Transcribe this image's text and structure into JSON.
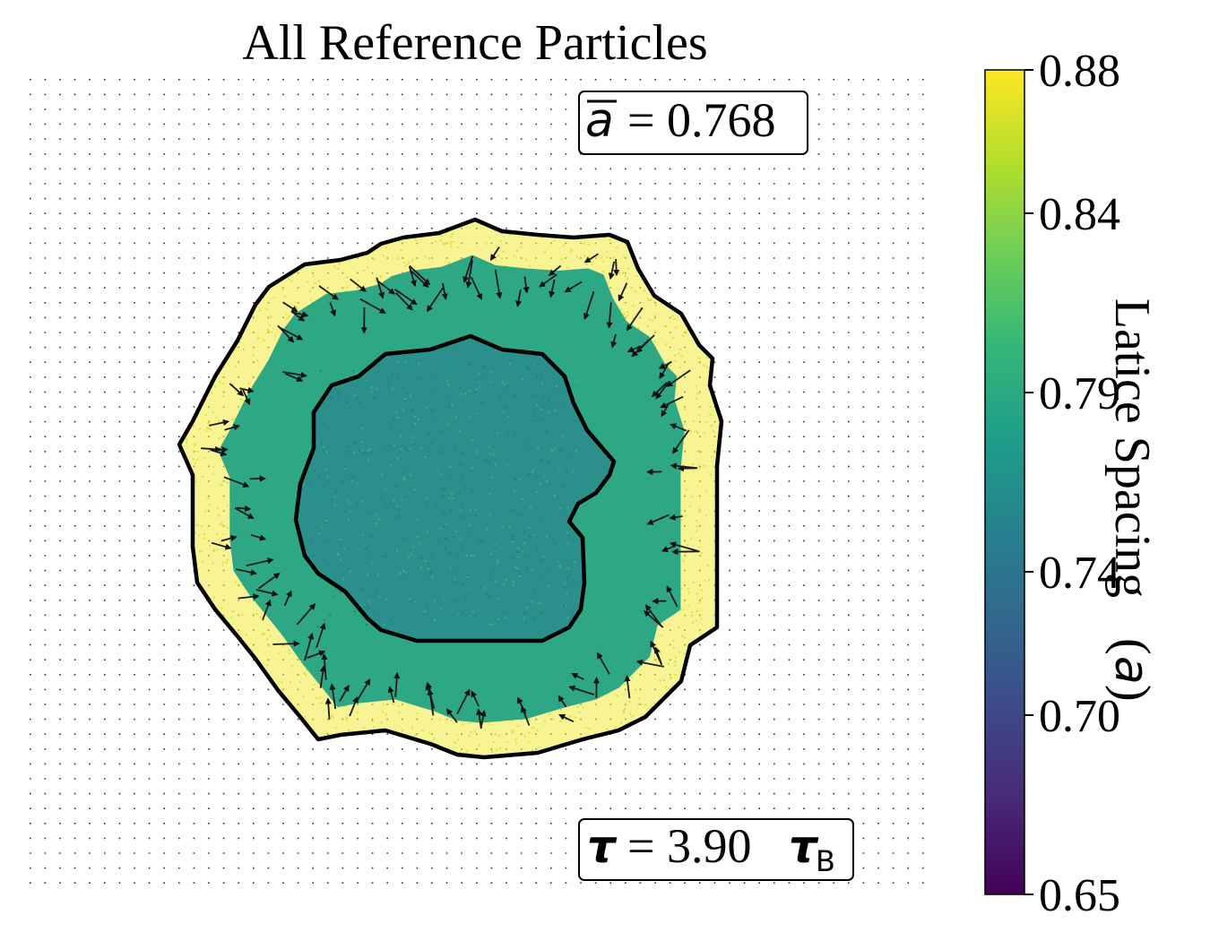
{
  "chart_data": {
    "type": "scatter",
    "title": "All Reference Particles",
    "annotations": {
      "mean_spacing_value": "= 0.768",
      "time_value": "= 3.90"
    },
    "colorbar": {
      "label": "Latice Spacing",
      "unit_symbol": "a",
      "range": [
        0.65,
        0.88
      ],
      "ticks": [
        "0.88",
        "0.84",
        "0.79",
        "0.74",
        "0.70",
        "0.65"
      ],
      "tick_values": [
        0.88,
        0.84,
        0.79,
        0.74,
        0.7,
        0.65
      ],
      "colormap": "viridis",
      "colormap_stops": [
        "#440154",
        "#482878",
        "#3e4989",
        "#31688e",
        "#26828e",
        "#1f9e89",
        "#35b779",
        "#6ece58",
        "#b5de2b",
        "#fde725"
      ]
    },
    "regions": [
      {
        "name": "core",
        "approx_spacing": 0.76
      },
      {
        "name": "ring",
        "approx_spacing": 0.79
      },
      {
        "name": "rim",
        "approx_spacing": 0.88
      }
    ],
    "axes": {
      "grid": false,
      "ticks_visible": false
    }
  }
}
